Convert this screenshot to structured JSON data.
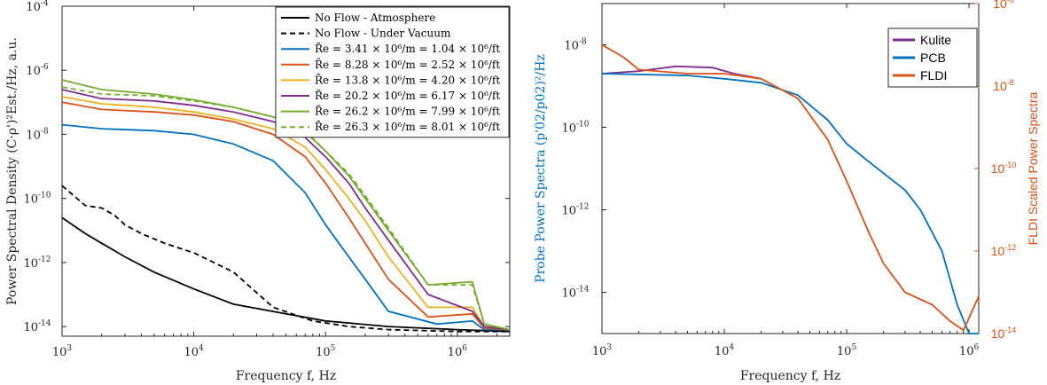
{
  "chart_data": [
    {
      "type": "line",
      "xlabel": "Frequency f, Hz",
      "ylabel": "Power Spectral Density (C·ρ')²Est./Hz, a.u.",
      "xscale": "log",
      "yscale": "log",
      "xlim": [
        1000,
        2500000
      ],
      "ylim": [
        5e-15,
        0.0001
      ],
      "xticks": [
        {
          "value": 1000,
          "label": "10",
          "exp": "3"
        },
        {
          "value": 10000,
          "label": "10",
          "exp": "4"
        },
        {
          "value": 100000,
          "label": "10",
          "exp": "5"
        },
        {
          "value": 1000000,
          "label": "10",
          "exp": "6"
        }
      ],
      "yticks": [
        {
          "value": 1e-14,
          "label": "10",
          "exp": "-14"
        },
        {
          "value": 1e-12,
          "label": "10",
          "exp": "-12"
        },
        {
          "value": 1e-10,
          "label": "10",
          "exp": "-10"
        },
        {
          "value": 1e-08,
          "label": "10",
          "exp": "-8"
        },
        {
          "value": 1e-06,
          "label": "10",
          "exp": "-6"
        },
        {
          "value": 0.0001,
          "label": "10",
          "exp": "-4"
        }
      ],
      "legend_position": "top-right",
      "series": [
        {
          "name": "No Flow - Atmosphere",
          "color": "#000000",
          "dash": "solid",
          "x": [
            1000,
            1500,
            2000,
            3000,
            5000,
            10000,
            20000,
            50000,
            100000,
            300000,
            1000000,
            2500000
          ],
          "y": [
            2.5e-11,
            8e-12,
            4e-12,
            1.5e-12,
            5e-13,
            1.5e-13,
            5e-14,
            2.5e-14,
            1.5e-14,
            1e-14,
            8e-15,
            7e-15
          ]
        },
        {
          "name": "No Flow - Under Vacuum",
          "color": "#000000",
          "dash": "dashed",
          "x": [
            1000,
            1500,
            2000,
            2500,
            3000,
            4000,
            6000,
            10000,
            20000,
            40000,
            80000,
            150000,
            300000,
            1000000,
            2500000
          ],
          "y": [
            2.5e-10,
            6e-11,
            5e-11,
            3e-11,
            1.5e-11,
            8e-12,
            4e-12,
            2e-12,
            5e-13,
            4e-14,
            1.5e-14,
            1e-14,
            8e-15,
            7e-15,
            7e-15
          ]
        },
        {
          "name": "R̄e = 3.41 × 10⁶/m = 1.04 × 10⁶/ft",
          "color": "#0072bd",
          "dash": "solid",
          "x": [
            1000,
            2000,
            5000,
            10000,
            20000,
            40000,
            70000,
            100000,
            150000,
            200000,
            300000,
            700000,
            1300000,
            1600000,
            2500000
          ],
          "y": [
            2e-08,
            1.5e-08,
            1.3e-08,
            1e-08,
            5e-09,
            1.5e-09,
            1.5e-10,
            1.5e-11,
            1.5e-12,
            3e-13,
            3e-14,
            1.2e-14,
            1.5e-14,
            8e-15,
            8e-15
          ]
        },
        {
          "name": "R̄e = 8.28 × 10⁶/m = 2.52 × 10⁶/ft",
          "color": "#d95319",
          "dash": "solid",
          "x": [
            1000,
            2000,
            5000,
            10000,
            20000,
            40000,
            70000,
            100000,
            150000,
            200000,
            300000,
            600000,
            1300000,
            1600000,
            2500000
          ],
          "y": [
            1e-07,
            6e-08,
            5e-08,
            4e-08,
            2.5e-08,
            1e-08,
            2e-09,
            3e-10,
            2.5e-11,
            4e-12,
            3e-13,
            2e-14,
            2.5e-14,
            9e-15,
            8e-15
          ]
        },
        {
          "name": "R̄e = 13.8 × 10⁶/m = 4.20 × 10⁶/ft",
          "color": "#edb120",
          "dash": "solid",
          "x": [
            1000,
            2000,
            5000,
            10000,
            20000,
            40000,
            70000,
            100000,
            150000,
            200000,
            300000,
            600000,
            1300000,
            1600000,
            2500000
          ],
          "y": [
            1.5e-07,
            9e-08,
            7e-08,
            5e-08,
            3e-08,
            1.5e-08,
            4e-09,
            8e-10,
            1e-10,
            2e-11,
            1.5e-12,
            4e-14,
            4e-14,
            1e-14,
            8e-15
          ]
        },
        {
          "name": "R̄e = 20.2 × 10⁶/m = 6.17 × 10⁶/ft",
          "color": "#7e2f8e",
          "dash": "solid",
          "x": [
            1000,
            2000,
            5000,
            10000,
            20000,
            40000,
            70000,
            100000,
            150000,
            200000,
            300000,
            600000,
            1300000,
            1600000,
            2500000
          ],
          "y": [
            2.5e-07,
            1.3e-07,
            1.1e-07,
            8e-08,
            5e-08,
            2.5e-08,
            8e-09,
            2e-09,
            3e-10,
            5e-11,
            5e-12,
            1e-13,
            3e-14,
            1e-14,
            8e-15
          ]
        },
        {
          "name": "R̄e = 26.2 × 10⁶/m = 7.99 × 10⁶/ft",
          "color": "#77ac30",
          "dash": "solid",
          "x": [
            1000,
            2000,
            5000,
            10000,
            20000,
            40000,
            70000,
            100000,
            150000,
            200000,
            300000,
            600000,
            1300000,
            1600000,
            2500000
          ],
          "y": [
            5e-07,
            2.5e-07,
            1.8e-07,
            1.2e-07,
            7e-08,
            3.5e-08,
            1.2e-08,
            3e-09,
            5e-10,
            1e-10,
            1e-11,
            2e-13,
            2.5e-13,
            1.2e-14,
            8e-15
          ]
        },
        {
          "name": "R̄e = 26.3 × 10⁶/m = 8.01 × 10⁶/ft",
          "color": "#77ac30",
          "dash": "dashed",
          "x": [
            1000,
            2000,
            5000,
            10000,
            20000,
            40000,
            70000,
            100000,
            150000,
            200000,
            300000,
            600000,
            1300000,
            1600000,
            2500000
          ],
          "y": [
            3e-07,
            1.8e-07,
            1.6e-07,
            1.1e-07,
            7e-08,
            3.5e-08,
            1.3e-08,
            3e-09,
            6e-10,
            1.2e-10,
            1.2e-11,
            2e-13,
            2e-13,
            1.2e-14,
            8e-15
          ]
        }
      ]
    },
    {
      "type": "line",
      "xlabel": "Frequency f, Hz",
      "ylabel": "Probe Power Spectra (p'02/p02)²/Hz",
      "y2label": "FLDI Scaled Power Spectra",
      "xscale": "log",
      "yscale": "log",
      "xlim": [
        1000,
        1200000
      ],
      "ylim": [
        1e-15,
        1e-07
      ],
      "y2lim": [
        1e-14,
        1e-06
      ],
      "xticks": [
        {
          "value": 1000,
          "label": "10",
          "exp": "3"
        },
        {
          "value": 10000,
          "label": "10",
          "exp": "4"
        },
        {
          "value": 100000,
          "label": "10",
          "exp": "5"
        },
        {
          "value": 1000000,
          "label": "10",
          "exp": "6"
        }
      ],
      "yticks": [
        {
          "value": 1e-14,
          "label": "10",
          "exp": "-14"
        },
        {
          "value": 1e-12,
          "label": "10",
          "exp": "-12"
        },
        {
          "value": 1e-10,
          "label": "10",
          "exp": "-10"
        },
        {
          "value": 1e-08,
          "label": "10",
          "exp": "-8"
        }
      ],
      "y2ticks": [
        {
          "value": 1e-14,
          "label": "10",
          "exp": "-14"
        },
        {
          "value": 1e-12,
          "label": "10",
          "exp": "-12"
        },
        {
          "value": 1e-10,
          "label": "10",
          "exp": "-10"
        },
        {
          "value": 1e-08,
          "label": "10",
          "exp": "-8"
        },
        {
          "value": 1e-06,
          "label": "10",
          "exp": "-6"
        }
      ],
      "legend_position": "top-right",
      "series": [
        {
          "name": "Kulite",
          "color": "#7e2f8e",
          "axis": "left",
          "x": [
            1000,
            2000,
            4000,
            8000,
            12000,
            20000
          ],
          "y": [
            2e-09,
            2.3e-09,
            3e-09,
            2.8e-09,
            2e-09,
            1.5e-09
          ]
        },
        {
          "name": "PCB",
          "color": "#0072bd",
          "axis": "left",
          "x": [
            1000,
            5000,
            10000,
            20000,
            40000,
            70000,
            100000,
            150000,
            300000,
            400000,
            600000,
            800000,
            1000000,
            1200000
          ],
          "y": [
            2e-09,
            1.8e-09,
            1.5e-09,
            1.2e-09,
            6e-10,
            1.5e-10,
            4e-11,
            1.5e-11,
            3e-12,
            1e-12,
            1e-13,
            5e-15,
            1e-15,
            1e-15
          ]
        },
        {
          "name": "FLDI",
          "color": "#d95319",
          "axis": "right",
          "x": [
            1000,
            1500,
            2000,
            5000,
            10000,
            20000,
            40000,
            70000,
            100000,
            150000,
            200000,
            300000,
            500000,
            700000,
            900000,
            1200000
          ],
          "y": [
            1e-07,
            5e-08,
            2.5e-08,
            2e-08,
            2e-08,
            1.5e-08,
            5e-09,
            5e-10,
            5e-11,
            3e-12,
            5e-13,
            1e-13,
            5e-14,
            2e-14,
            1.2e-14,
            8e-14
          ]
        }
      ]
    }
  ]
}
